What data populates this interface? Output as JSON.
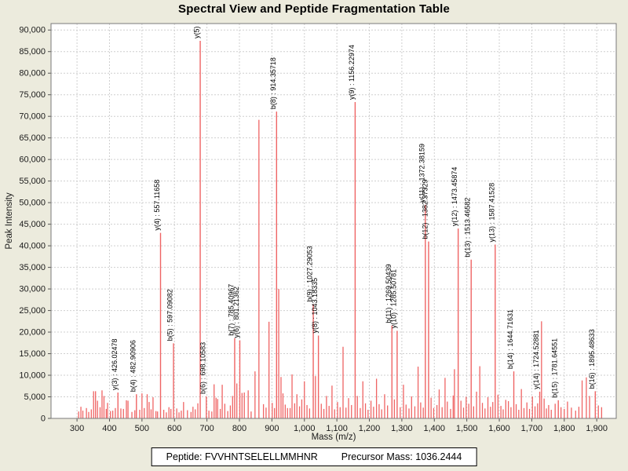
{
  "title": "Spectral View and Peptide Fragmentation Table",
  "footer": {
    "peptide": "Peptide: FVVHNTSELELLMMHNR",
    "precursor": "Precursor Mass: 1036.2444"
  },
  "colors": {
    "background": "#ecebdd",
    "plot_background": "#ffffff",
    "plot_border": "#7a7a7a",
    "grid": "#cfcfcf",
    "peak": "#ef6464",
    "text": "#1a1a1a",
    "label_text": "#000000"
  },
  "chart_data": {
    "type": "stem",
    "title": "Spectral View and Peptide Fragmentation Table",
    "xlabel": "Mass (m/z)",
    "ylabel": "Peak Intensity",
    "xlim": [
      220,
      1960
    ],
    "ylim": [
      0,
      91500
    ],
    "x_ticks": {
      "start": 300,
      "end": 1900,
      "step": 100
    },
    "y_ticks": {
      "start": 0,
      "end": 90000,
      "step": 5000
    },
    "grid": true,
    "legend": "none",
    "labeled_peaks": [
      {
        "label": "y(3) : 426.02478",
        "mz": 426.02478,
        "intensity": 6000
      },
      {
        "label": "b(4) : 482.90906",
        "mz": 482.90906,
        "intensity": 5600
      },
      {
        "label": "y(4) : 557.11658",
        "mz": 557.11658,
        "intensity": 43000
      },
      {
        "label": "b(5) : 597.09082",
        "mz": 597.09082,
        "intensity": 17400
      },
      {
        "label": "y(5) :",
        "mz": 679.3,
        "intensity": 87500
      },
      {
        "label": "b(6) : 698.10583",
        "mz": 698.10583,
        "intensity": 5100
      },
      {
        "label": "b(7) : 785.40967",
        "mz": 785.40967,
        "intensity": 18600
      },
      {
        "label": "y(6) : 801.21362",
        "mz": 801.21362,
        "intensity": 18100
      },
      {
        "label": "b(8) : 914.35718",
        "mz": 914.35718,
        "intensity": 71100
      },
      {
        "label": "b(9) : 1027.29053",
        "mz": 1027.29053,
        "intensity": 26500
      },
      {
        "label": "y(8) : 1043.18335",
        "mz": 1043.18335,
        "intensity": 19200
      },
      {
        "label": "y(9) : 1156.22974",
        "mz": 1156.22974,
        "intensity": 73300
      },
      {
        "label": "b(11) : 1269.50439",
        "mz": 1269.50439,
        "intensity": 21500
      },
      {
        "label": "y(10) : 1285.50781",
        "mz": 1285.50781,
        "intensity": 20300
      },
      {
        "label": "y(11) : 1372.38159",
        "mz": 1372.38159,
        "intensity": 49500
      },
      {
        "label": "b(12) : 1382.37329",
        "mz": 1382.37329,
        "intensity": 41000
      },
      {
        "label": "y(12) : 1473.45874",
        "mz": 1473.45874,
        "intensity": 44000
      },
      {
        "label": "b(13) : 1513.46582",
        "mz": 1513.46582,
        "intensity": 36800
      },
      {
        "label": "y(13) : 1587.41528",
        "mz": 1587.41528,
        "intensity": 40300
      },
      {
        "label": "b(14) : 1644.71631",
        "mz": 1644.71631,
        "intensity": 10900
      },
      {
        "label": "y(14) : 1724.52881",
        "mz": 1724.52881,
        "intensity": 6200
      },
      {
        "label": "b(15) : 1781.64551",
        "mz": 1781.64551,
        "intensity": 4200
      },
      {
        "label": "b(16) : 1895.48633",
        "mz": 1895.48633,
        "intensity": 6300
      }
    ],
    "background_peaks": [
      [
        305,
        1600
      ],
      [
        312,
        2700
      ],
      [
        318,
        1800
      ],
      [
        329,
        2400
      ],
      [
        336,
        1500
      ],
      [
        344,
        2100
      ],
      [
        351,
        6300
      ],
      [
        357,
        6300
      ],
      [
        363,
        4100
      ],
      [
        371,
        2600
      ],
      [
        377,
        6500
      ],
      [
        383,
        5200
      ],
      [
        390,
        2200
      ],
      [
        394,
        3600
      ],
      [
        403,
        1700
      ],
      [
        410,
        1800
      ],
      [
        418,
        2400
      ],
      [
        435,
        2300
      ],
      [
        443,
        2200
      ],
      [
        452,
        4200
      ],
      [
        457,
        4100
      ],
      [
        469,
        1500
      ],
      [
        478,
        1900
      ],
      [
        493,
        2000
      ],
      [
        500,
        5800
      ],
      [
        507,
        2400
      ],
      [
        516,
        5600
      ],
      [
        522,
        3800
      ],
      [
        528,
        2100
      ],
      [
        534,
        4900
      ],
      [
        543,
        1700
      ],
      [
        548,
        1600
      ],
      [
        567,
        2000
      ],
      [
        575,
        1400
      ],
      [
        583,
        2600
      ],
      [
        589,
        2200
      ],
      [
        607,
        2300
      ],
      [
        614,
        1400
      ],
      [
        621,
        1800
      ],
      [
        628,
        3800
      ],
      [
        640,
        1900
      ],
      [
        651,
        1500
      ],
      [
        657,
        2700
      ],
      [
        664,
        2100
      ],
      [
        672,
        3500
      ],
      [
        706,
        1800
      ],
      [
        715,
        1600
      ],
      [
        722,
        7900
      ],
      [
        728,
        4800
      ],
      [
        733,
        4500
      ],
      [
        741,
        2200
      ],
      [
        747,
        7800
      ],
      [
        755,
        3400
      ],
      [
        764,
        1700
      ],
      [
        772,
        3000
      ],
      [
        779,
        5200
      ],
      [
        792,
        8100
      ],
      [
        808,
        5900
      ],
      [
        815,
        6000
      ],
      [
        827,
        6500
      ],
      [
        836,
        1600
      ],
      [
        848,
        10900
      ],
      [
        860,
        69200
      ],
      [
        874,
        3300
      ],
      [
        882,
        2500
      ],
      [
        891,
        22400
      ],
      [
        901,
        3600
      ],
      [
        908,
        2400
      ],
      [
        921,
        30000
      ],
      [
        928,
        9600
      ],
      [
        934,
        5800
      ],
      [
        941,
        3200
      ],
      [
        948,
        2400
      ],
      [
        956,
        2400
      ],
      [
        962,
        10200
      ],
      [
        970,
        3500
      ],
      [
        977,
        5600
      ],
      [
        985,
        2800
      ],
      [
        992,
        4400
      ],
      [
        1000,
        8600
      ],
      [
        1008,
        3100
      ],
      [
        1016,
        2300
      ],
      [
        1034,
        9800
      ],
      [
        1052,
        3400
      ],
      [
        1060,
        2200
      ],
      [
        1068,
        5200
      ],
      [
        1076,
        2900
      ],
      [
        1085,
        7600
      ],
      [
        1093,
        2100
      ],
      [
        1102,
        3800
      ],
      [
        1110,
        2600
      ],
      [
        1119,
        16600
      ],
      [
        1128,
        2500
      ],
      [
        1136,
        4700
      ],
      [
        1145,
        3100
      ],
      [
        1163,
        5200
      ],
      [
        1172,
        2400
      ],
      [
        1180,
        8600
      ],
      [
        1188,
        3500
      ],
      [
        1196,
        2000
      ],
      [
        1205,
        4100
      ],
      [
        1213,
        2700
      ],
      [
        1222,
        9200
      ],
      [
        1230,
        3300
      ],
      [
        1238,
        2100
      ],
      [
        1247,
        5600
      ],
      [
        1256,
        3000
      ],
      [
        1277,
        4400
      ],
      [
        1295,
        2600
      ],
      [
        1305,
        7800
      ],
      [
        1313,
        3200
      ],
      [
        1322,
        2300
      ],
      [
        1330,
        5100
      ],
      [
        1340,
        2800
      ],
      [
        1350,
        12000
      ],
      [
        1358,
        3700
      ],
      [
        1366,
        2500
      ],
      [
        1390,
        4800
      ],
      [
        1398,
        2400
      ],
      [
        1408,
        3100
      ],
      [
        1415,
        6700
      ],
      [
        1424,
        2600
      ],
      [
        1433,
        9400
      ],
      [
        1440,
        3900
      ],
      [
        1450,
        2200
      ],
      [
        1458,
        5300
      ],
      [
        1462,
        11400
      ],
      [
        1482,
        4100
      ],
      [
        1490,
        2500
      ],
      [
        1498,
        5000
      ],
      [
        1506,
        3400
      ],
      [
        1521,
        2800
      ],
      [
        1530,
        6200
      ],
      [
        1540,
        12100
      ],
      [
        1548,
        3600
      ],
      [
        1556,
        2300
      ],
      [
        1565,
        4900
      ],
      [
        1573,
        2700
      ],
      [
        1580,
        3800
      ],
      [
        1596,
        5500
      ],
      [
        1605,
        2900
      ],
      [
        1612,
        2100
      ],
      [
        1620,
        4300
      ],
      [
        1628,
        4000
      ],
      [
        1636,
        2600
      ],
      [
        1652,
        3300
      ],
      [
        1660,
        2000
      ],
      [
        1668,
        6800
      ],
      [
        1676,
        2400
      ],
      [
        1685,
        3700
      ],
      [
        1693,
        2200
      ],
      [
        1702,
        5100
      ],
      [
        1710,
        2800
      ],
      [
        1718,
        3500
      ],
      [
        1730,
        22500
      ],
      [
        1738,
        4600
      ],
      [
        1745,
        2300
      ],
      [
        1752,
        3100
      ],
      [
        1760,
        2000
      ],
      [
        1772,
        3400
      ],
      [
        1790,
        2600
      ],
      [
        1800,
        2200
      ],
      [
        1810,
        3900
      ],
      [
        1822,
        2500
      ],
      [
        1835,
        1800
      ],
      [
        1845,
        2700
      ],
      [
        1855,
        8800
      ],
      [
        1868,
        9500
      ],
      [
        1878,
        5200
      ],
      [
        1905,
        3000
      ],
      [
        1915,
        2600
      ]
    ]
  }
}
